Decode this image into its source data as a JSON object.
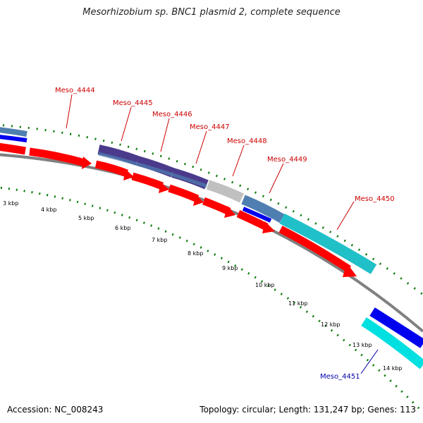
{
  "title": "Mesorhizobium sp. BNC1 plasmid 2, complete sequence",
  "footer": {
    "accession": "Accession: NC_008243",
    "summary": "Topology: circular; Length: 131,247 bp; Genes: 113"
  },
  "gene_labels": [
    {
      "text": "Meso_4444",
      "color": "#cc0000"
    },
    {
      "text": "Meso_4445",
      "color": "#cc0000"
    },
    {
      "text": "Meso_4446",
      "color": "#cc0000"
    },
    {
      "text": "Meso_4447",
      "color": "#cc0000"
    },
    {
      "text": "Meso_4448",
      "color": "#cc0000"
    },
    {
      "text": "Meso_4449",
      "color": "#cc0000"
    },
    {
      "text": "Meso_4450",
      "color": "#cc0000"
    },
    {
      "text": "Meso_4451",
      "color": "#0000aa"
    }
  ],
  "kbp_ticks": [
    "3 kbp",
    "4 kbp",
    "5 kbp",
    "6 kbp",
    "7 kbp",
    "8 kbp",
    "9 kbp",
    "10 kbp",
    "11 kbp",
    "12 kbp",
    "13 kbp",
    "14 kbp"
  ],
  "colors": {
    "cds_red": "#ff0000",
    "gc_blue": "#0000ee",
    "gc_cyan": "#00e0e0",
    "cog_steel": "#4f7fb0",
    "cog_purple": "#4b3a8c",
    "cog_grey": "#c0c0c0",
    "cog_teal": "#20c0c8",
    "backbone": "#808080",
    "tick_green": "#0a7a0a"
  }
}
